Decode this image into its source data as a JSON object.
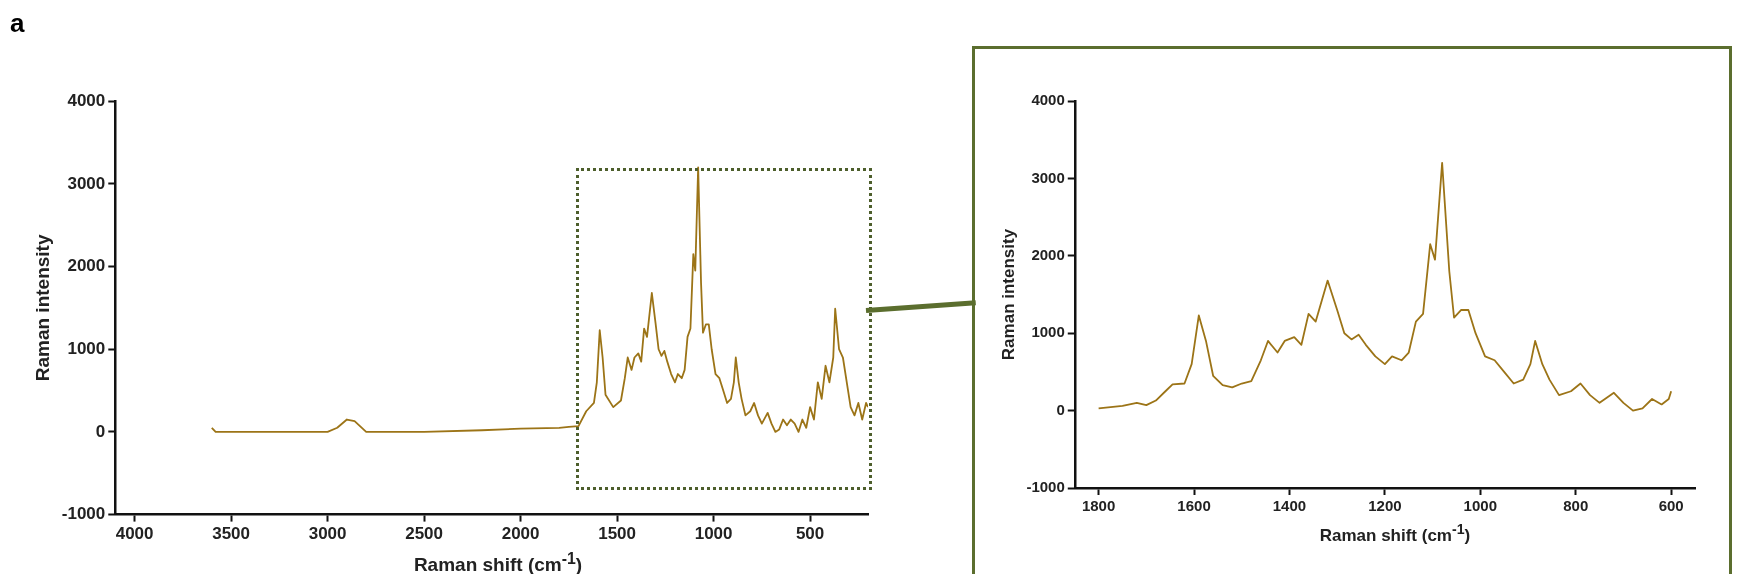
{
  "chart_data": [
    {
      "type": "line",
      "annotations": [
        "a"
      ],
      "xlabel": "Raman shift (cm$^{-1}$)",
      "ylabel": "Raman intensity",
      "xlim": [
        4100,
        200
      ],
      "xticks": [
        4000,
        3500,
        3000,
        2500,
        2000,
        1500,
        1000,
        500
      ],
      "ylim": [
        -1000,
        4000
      ],
      "yticks": [
        -1000,
        0,
        1000,
        2000,
        3000,
        4000
      ],
      "grid": false,
      "legend": false,
      "marker": "none",
      "line_style": "solid",
      "series": [
        {
          "color": "#9c7417",
          "x": [
            3600,
            3580,
            3500,
            3000,
            2950,
            2900,
            2860,
            2800,
            2500,
            2200,
            2000,
            1800,
            1750,
            1700,
            1660,
            1620,
            1605,
            1590,
            1575,
            1560,
            1520,
            1480,
            1460,
            1445,
            1425,
            1410,
            1390,
            1375,
            1360,
            1345,
            1320,
            1300,
            1285,
            1270,
            1255,
            1240,
            1220,
            1200,
            1185,
            1165,
            1150,
            1135,
            1120,
            1105,
            1095,
            1080,
            1065,
            1055,
            1040,
            1025,
            1010,
            990,
            970,
            950,
            930,
            910,
            895,
            885,
            870,
            855,
            835,
            810,
            790,
            770,
            750,
            720,
            700,
            680,
            660,
            640,
            620,
            600,
            580,
            560,
            540,
            520,
            500,
            480,
            460,
            440,
            420,
            400,
            380,
            370,
            350,
            330,
            310,
            290,
            270,
            250,
            230,
            210,
            200
          ],
          "values": [
            50,
            0,
            0,
            0,
            50,
            150,
            130,
            0,
            0,
            20,
            40,
            50,
            60,
            70,
            250,
            350,
            600,
            1230,
            900,
            450,
            300,
            380,
            650,
            900,
            750,
            900,
            950,
            850,
            1250,
            1150,
            1680,
            1300,
            1000,
            920,
            980,
            850,
            700,
            600,
            700,
            650,
            750,
            1150,
            1250,
            2150,
            1950,
            3200,
            1800,
            1200,
            1300,
            1300,
            1000,
            700,
            650,
            500,
            350,
            400,
            600,
            900,
            600,
            400,
            200,
            250,
            350,
            200,
            100,
            230,
            100,
            0,
            30,
            150,
            80,
            150,
            100,
            0,
            150,
            50,
            300,
            150,
            600,
            400,
            800,
            600,
            900,
            1490,
            1000,
            900,
            600,
            300,
            200,
            350,
            150,
            350,
            300
          ]
        }
      ]
    },
    {
      "type": "line",
      "xlabel": "Raman shift (cm$^{-1}$)",
      "ylabel": "Raman intensity",
      "xlim": [
        1850,
        550
      ],
      "xticks": [
        1800,
        1600,
        1400,
        1200,
        1000,
        800,
        600
      ],
      "ylim": [
        -1000,
        4000
      ],
      "yticks": [
        -1000,
        0,
        1000,
        2000,
        3000,
        4000
      ],
      "grid": false,
      "legend": false,
      "marker": "none",
      "line_style": "solid",
      "series": [
        {
          "color": "#9c7417",
          "x": [
            1800,
            1750,
            1720,
            1700,
            1680,
            1660,
            1645,
            1620,
            1605,
            1590,
            1575,
            1560,
            1540,
            1520,
            1500,
            1480,
            1460,
            1445,
            1425,
            1410,
            1390,
            1375,
            1360,
            1345,
            1320,
            1300,
            1285,
            1270,
            1255,
            1240,
            1220,
            1200,
            1185,
            1165,
            1150,
            1135,
            1120,
            1105,
            1095,
            1080,
            1065,
            1055,
            1040,
            1025,
            1010,
            990,
            970,
            950,
            930,
            910,
            895,
            885,
            870,
            855,
            835,
            810,
            790,
            770,
            750,
            720,
            700,
            680,
            660,
            640,
            620,
            605,
            600
          ],
          "values": [
            30,
            60,
            100,
            70,
            130,
            250,
            340,
            350,
            600,
            1230,
            900,
            450,
            330,
            300,
            350,
            380,
            650,
            900,
            750,
            900,
            950,
            850,
            1250,
            1150,
            1680,
            1300,
            1000,
            920,
            980,
            850,
            700,
            600,
            700,
            650,
            750,
            1150,
            1250,
            2150,
            1950,
            3200,
            1800,
            1200,
            1300,
            1300,
            1000,
            700,
            650,
            500,
            350,
            400,
            600,
            900,
            600,
            400,
            200,
            250,
            350,
            200,
            100,
            230,
            100,
            0,
            30,
            150,
            80,
            150,
            250
          ]
        }
      ]
    }
  ]
}
